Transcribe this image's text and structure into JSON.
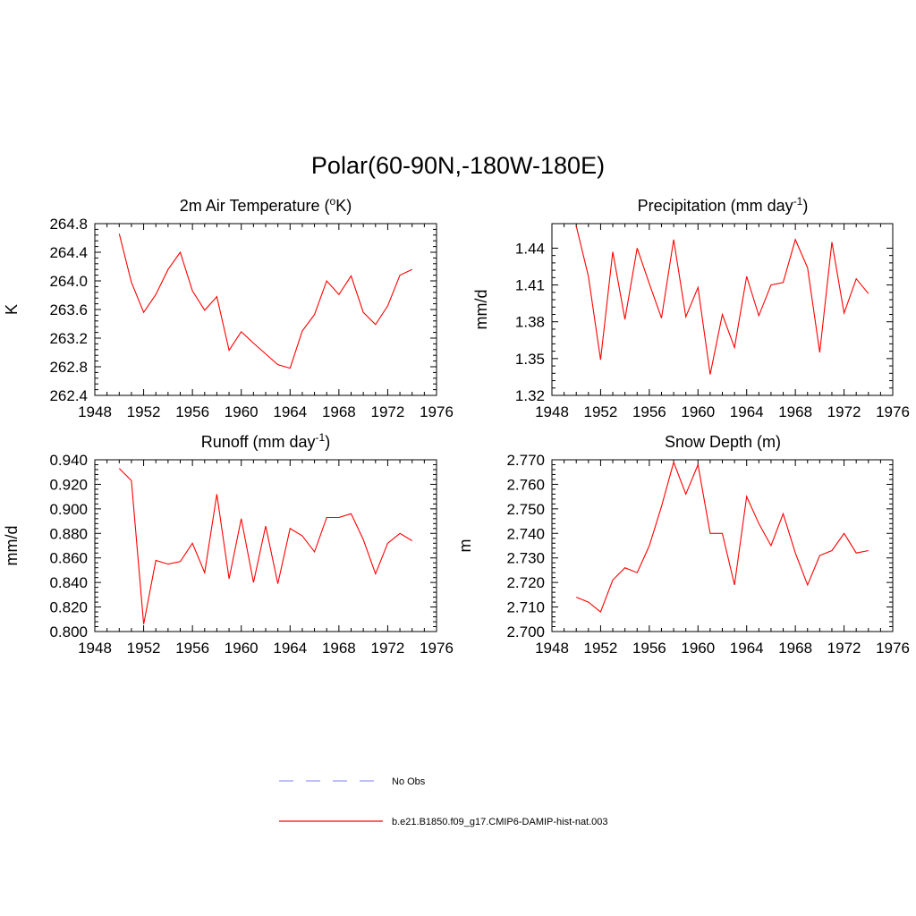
{
  "title": "Polar(60-90N,-180W-180E)",
  "colors": {
    "model": "#ff0000",
    "obs": "#9999ff",
    "axis": "#000000"
  },
  "legend": {
    "obs_label": "No Obs",
    "model_label": "b.e21.B1850.f09_g17.CMIP6-DAMIP-hist-nat.003"
  },
  "chart_data": [
    {
      "type": "line",
      "title_main": "2m Air Temperature (",
      "title_sup": "o",
      "title_tail": "K)",
      "ylabel": "K",
      "xlim": [
        1948,
        1976
      ],
      "ylim": [
        262.4,
        264.8
      ],
      "xticks": [
        "1948",
        "1952",
        "1956",
        "1960",
        "1964",
        "1968",
        "1972",
        "1976"
      ],
      "yticks": [
        "262.4",
        "262.8",
        "263.2",
        "263.6",
        "264.0",
        "264.4",
        "264.8"
      ],
      "series": [
        {
          "x": [
            1950,
            1951,
            1952,
            1953,
            1954,
            1955,
            1956,
            1957,
            1958,
            1959,
            1960,
            1961,
            1962,
            1963,
            1964,
            1965,
            1966,
            1967,
            1968,
            1969,
            1970,
            1971,
            1972,
            1973,
            1974
          ],
          "y": [
            264.66,
            263.98,
            263.56,
            263.81,
            264.16,
            264.4,
            263.86,
            263.59,
            263.78,
            263.03,
            263.29,
            263.13,
            262.98,
            262.83,
            262.78,
            263.3,
            263.53,
            264.0,
            263.81,
            264.07,
            263.56,
            263.39,
            263.65,
            264.08,
            264.16
          ]
        }
      ]
    },
    {
      "type": "line",
      "title_main": "Precipitation (mm day",
      "title_sup": "-1",
      "title_tail": ")",
      "ylabel": "mm/d",
      "xlim": [
        1948,
        1976
      ],
      "ylim": [
        1.32,
        1.46
      ],
      "xticks": [
        "1948",
        "1952",
        "1956",
        "1960",
        "1964",
        "1968",
        "1972",
        "1976"
      ],
      "yticks": [
        "1.32",
        "1.35",
        "1.38",
        "1.41",
        "1.44"
      ],
      "series": [
        {
          "x": [
            1950,
            1951,
            1952,
            1953,
            1954,
            1955,
            1956,
            1957,
            1958,
            1959,
            1960,
            1961,
            1962,
            1963,
            1964,
            1965,
            1966,
            1967,
            1968,
            1969,
            1970,
            1971,
            1972,
            1973,
            1974
          ],
          "y": [
            1.458,
            1.417,
            1.349,
            1.437,
            1.382,
            1.44,
            1.411,
            1.383,
            1.447,
            1.384,
            1.408,
            1.337,
            1.386,
            1.359,
            1.417,
            1.385,
            1.41,
            1.412,
            1.447,
            1.424,
            1.355,
            1.445,
            1.387,
            1.415,
            1.403
          ]
        }
      ]
    },
    {
      "type": "line",
      "title_main": "Runoff (mm day",
      "title_sup": "-1",
      "title_tail": ")",
      "ylabel": "mm/d",
      "xlim": [
        1948,
        1976
      ],
      "ylim": [
        0.8,
        0.94
      ],
      "xticks": [
        "1948",
        "1952",
        "1956",
        "1960",
        "1964",
        "1968",
        "1972",
        "1976"
      ],
      "yticks": [
        "0.800",
        "0.820",
        "0.840",
        "0.860",
        "0.880",
        "0.900",
        "0.920",
        "0.940"
      ],
      "series": [
        {
          "x": [
            1950,
            1951,
            1952,
            1953,
            1954,
            1955,
            1956,
            1957,
            1958,
            1959,
            1960,
            1961,
            1962,
            1963,
            1964,
            1965,
            1966,
            1967,
            1968,
            1969,
            1970,
            1971,
            1972,
            1973,
            1974
          ],
          "y": [
            0.933,
            0.923,
            0.806,
            0.858,
            0.855,
            0.857,
            0.872,
            0.848,
            0.912,
            0.843,
            0.892,
            0.84,
            0.886,
            0.839,
            0.884,
            0.878,
            0.865,
            0.893,
            0.893,
            0.896,
            0.875,
            0.847,
            0.872,
            0.88,
            0.874
          ]
        }
      ]
    },
    {
      "type": "line",
      "title_main": "Snow Depth (m)",
      "title_sup": "",
      "title_tail": "",
      "ylabel": "m",
      "xlim": [
        1948,
        1976
      ],
      "ylim": [
        2.7,
        2.77
      ],
      "xticks": [
        "1948",
        "1952",
        "1956",
        "1960",
        "1964",
        "1968",
        "1972",
        "1976"
      ],
      "yticks": [
        "2.700",
        "2.710",
        "2.720",
        "2.730",
        "2.740",
        "2.750",
        "2.760",
        "2.770"
      ],
      "series": [
        {
          "x": [
            1950,
            1951,
            1952,
            1953,
            1954,
            1955,
            1956,
            1957,
            1958,
            1959,
            1960,
            1961,
            1962,
            1963,
            1964,
            1965,
            1966,
            1967,
            1968,
            1969,
            1970,
            1971,
            1972,
            1973,
            1974
          ],
          "y": [
            2.714,
            2.712,
            2.708,
            2.721,
            2.726,
            2.724,
            2.735,
            2.751,
            2.769,
            2.756,
            2.768,
            2.74,
            2.74,
            2.719,
            2.755,
            2.744,
            2.735,
            2.748,
            2.732,
            2.719,
            2.731,
            2.733,
            2.74,
            2.732,
            2.733
          ]
        }
      ]
    }
  ]
}
